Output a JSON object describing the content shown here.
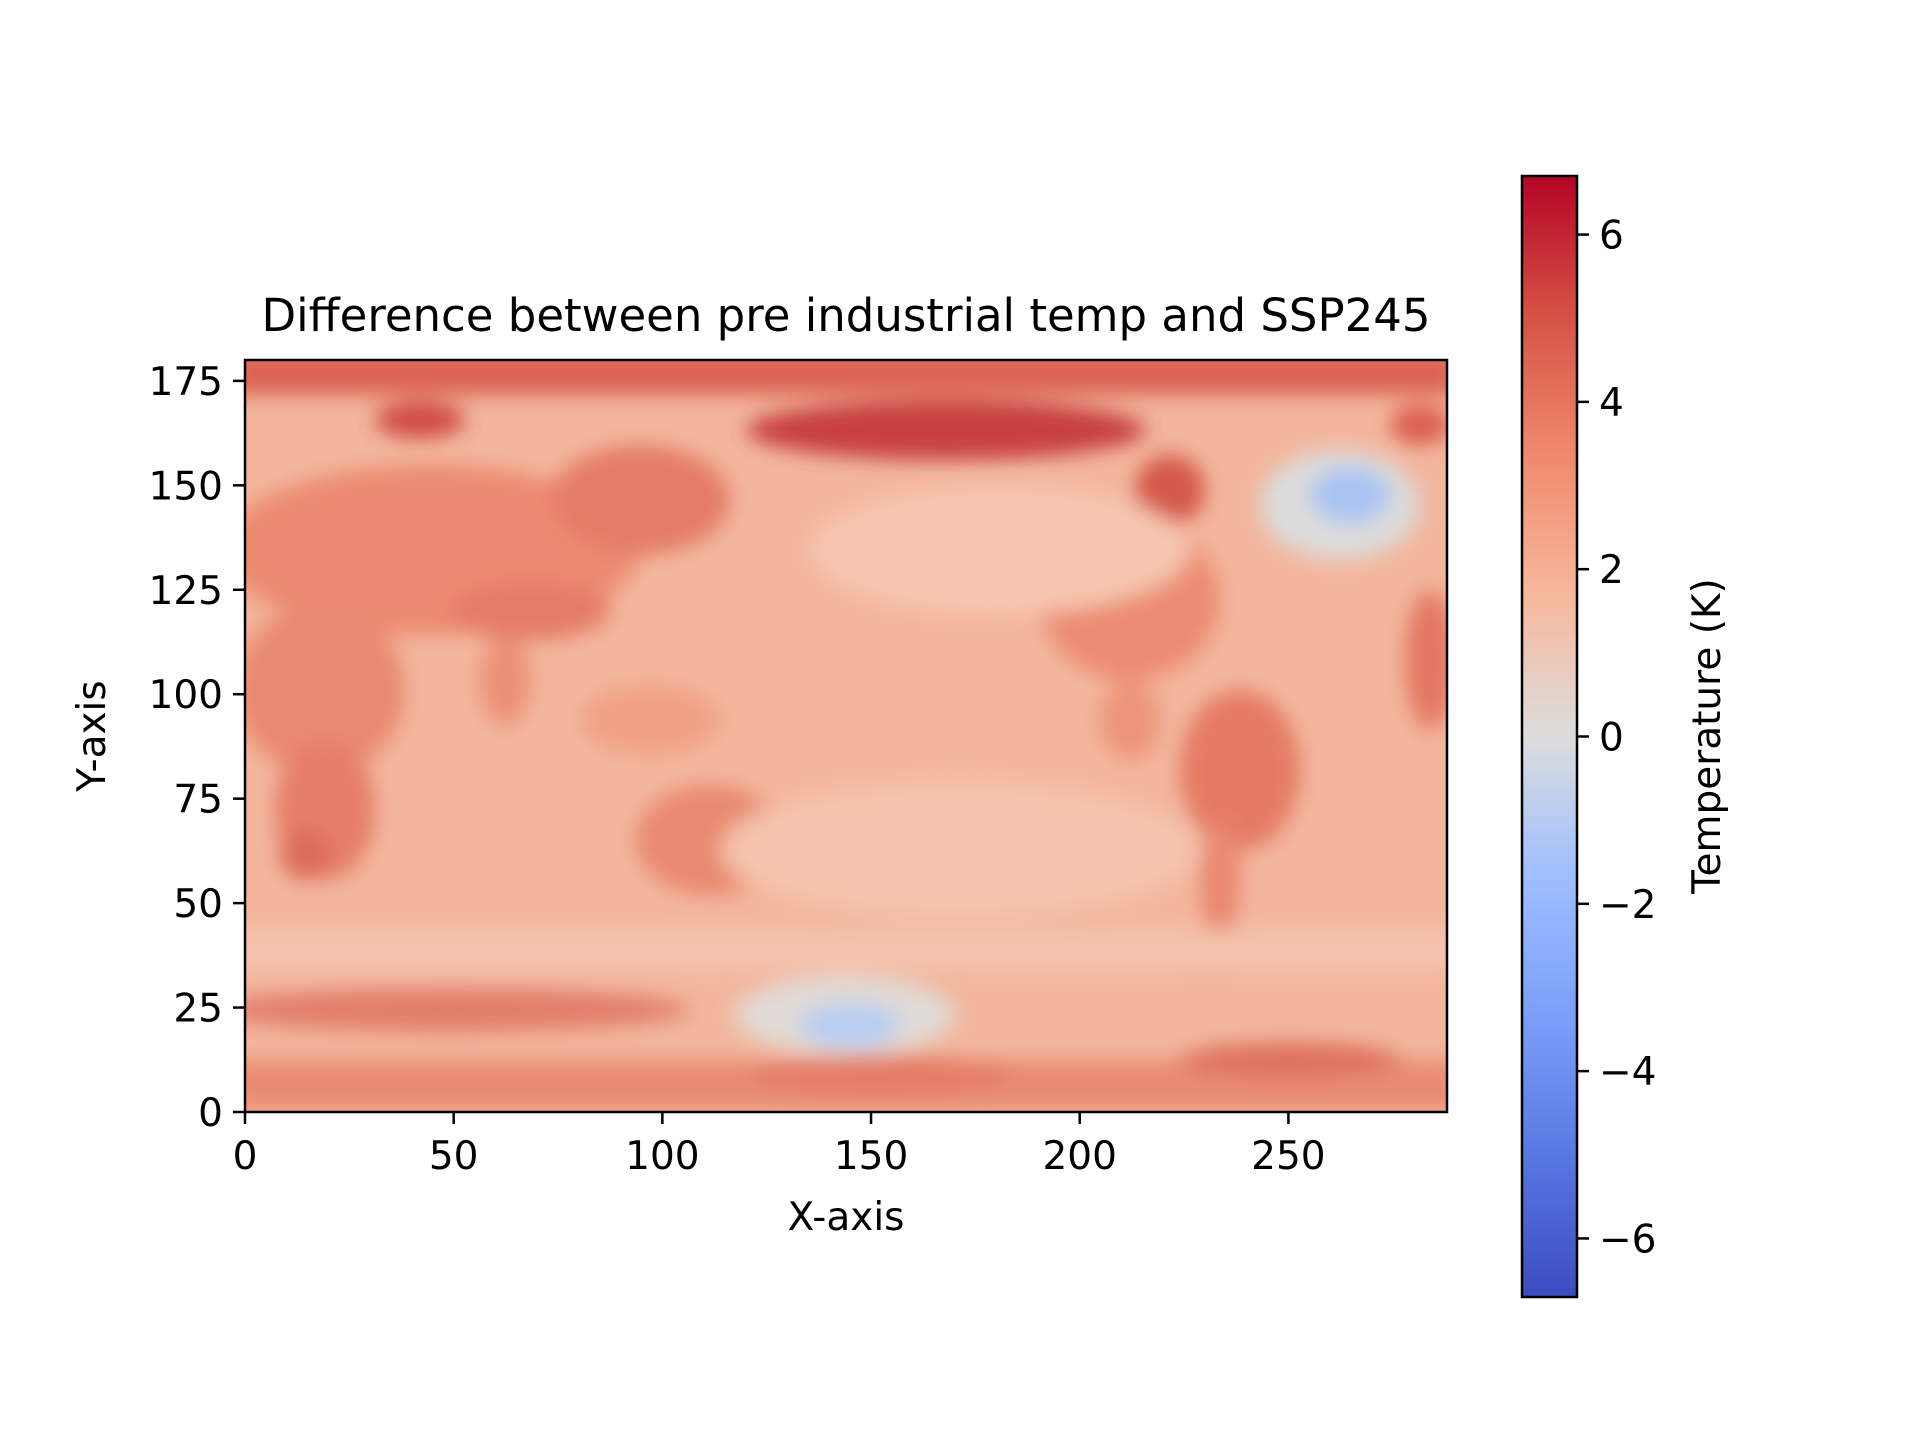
{
  "chart_data": {
    "type": "heatmap",
    "title": "Difference between pre industrial temp and SSP245",
    "xlabel": "X-axis",
    "ylabel": "Y-axis",
    "xlim": [
      0,
      288
    ],
    "ylim": [
      0,
      180
    ],
    "x_ticks": [
      0,
      50,
      100,
      150,
      200,
      250
    ],
    "y_ticks": [
      0,
      25,
      50,
      75,
      100,
      125,
      150,
      175
    ],
    "x_tick_labels": [
      "0",
      "50",
      "100",
      "150",
      "200",
      "250"
    ],
    "y_tick_labels": [
      "0",
      "25",
      "50",
      "75",
      "100",
      "125",
      "150",
      "175"
    ],
    "grid": false,
    "colormap": "coolwarm",
    "colorbar": {
      "label": "Temperature (K)",
      "vmin": -6.7,
      "vmax": 6.7,
      "ticks": [
        -6,
        -4,
        -2,
        0,
        2,
        4,
        6
      ],
      "tick_labels": [
        "−6",
        "−4",
        "−2",
        "0",
        "2",
        "4",
        "6"
      ]
    },
    "field_summary": {
      "background_ocean_warming": 2.0,
      "land_warming": 3.2,
      "arctic_band_warming": [
        4.8,
        6.2
      ],
      "antarctic_band_warming": 3.5,
      "north_atlantic_cold_blob_min": -1.6,
      "southern_ocean_cold_spot_min": -1.7
    }
  }
}
